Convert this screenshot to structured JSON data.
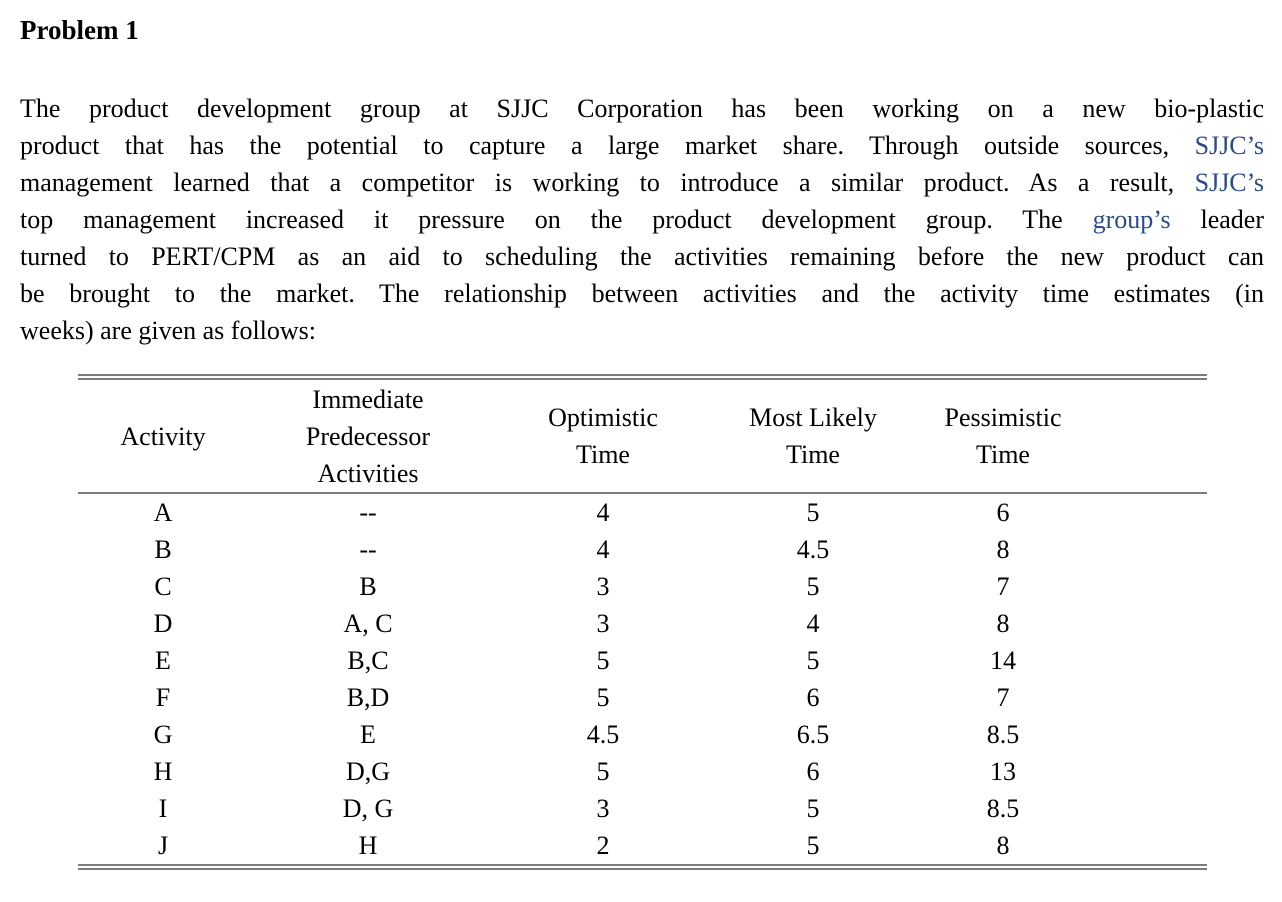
{
  "title": "Problem 1",
  "accent_color": "#2a4b8d",
  "rule_color": "#7d7d7d",
  "paragraph": {
    "lines": [
      [
        {
          "text": "The product development group at SJJC Corporation has been working on a new bio-plastic"
        }
      ],
      [
        {
          "text": "product that has the potential to capture a large market share. Through outside sources, "
        },
        {
          "text": "SJJC’s",
          "accent": true
        }
      ],
      [
        {
          "text": "management learned that a competitor is working to introduce a similar product. As a result, "
        },
        {
          "text": "SJJC’s",
          "accent": true
        }
      ],
      [
        {
          "text": "top management increased it pressure on the product development group. The "
        },
        {
          "text": "group’s",
          "accent": true
        },
        {
          "text": " leader"
        }
      ],
      [
        {
          "text": "turned to PERT/CPM as an aid to scheduling the activities remaining before the new product can"
        }
      ],
      [
        {
          "text": "be brought to the market. The relationship between activities and the activity time estimates (in"
        }
      ],
      [
        {
          "text": "weeks) are given as follows:"
        }
      ]
    ]
  },
  "table": {
    "headers": [
      "Activity",
      "Immediate\nPredecessor\nActivities",
      "Optimistic\nTime",
      "Most Likely\nTime",
      "Pessimistic\nTime"
    ],
    "rows": [
      [
        "A",
        "--",
        "4",
        "5",
        "6"
      ],
      [
        "B",
        "--",
        "4",
        "4.5",
        "8"
      ],
      [
        "C",
        "B",
        "3",
        "5",
        "7"
      ],
      [
        "D",
        "A, C",
        "3",
        "4",
        "8"
      ],
      [
        "E",
        "B,C",
        "5",
        "5",
        "14"
      ],
      [
        "F",
        "B,D",
        "5",
        "6",
        "7"
      ],
      [
        "G",
        "E",
        "4.5",
        "6.5",
        "8.5"
      ],
      [
        "H",
        "D,G",
        "5",
        "6",
        "13"
      ],
      [
        "I",
        "D, G",
        "3",
        "5",
        "8.5"
      ],
      [
        "J",
        "H",
        "2",
        "5",
        "8"
      ]
    ]
  }
}
